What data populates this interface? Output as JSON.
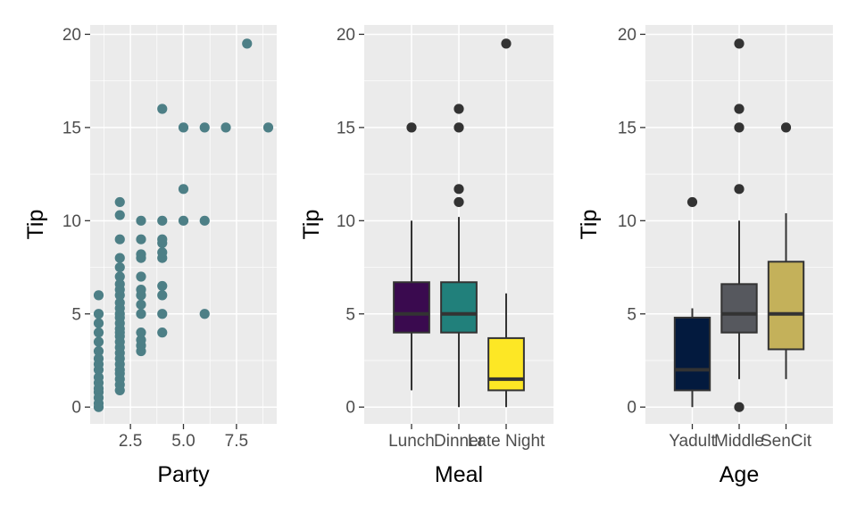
{
  "chart_data": [
    {
      "type": "scatter",
      "xlabel": "Party",
      "ylabel": "Tip",
      "xlim": [
        0.6,
        9.4
      ],
      "ylim": [
        -0.9,
        20.5
      ],
      "x_ticks": [
        2.5,
        5.0,
        7.5
      ],
      "x_tick_labels": [
        "2.5",
        "5.0",
        "7.5"
      ],
      "y_ticks": [
        0,
        5,
        10,
        15,
        20
      ],
      "y_tick_labels": [
        "0",
        "5",
        "10",
        "15",
        "20"
      ],
      "point_color": "#4d7f86",
      "points": [
        [
          1,
          0
        ],
        [
          1,
          0.2
        ],
        [
          1,
          0.5
        ],
        [
          1,
          0.8
        ],
        [
          1,
          1
        ],
        [
          1,
          1.3
        ],
        [
          1,
          1.6
        ],
        [
          1,
          2
        ],
        [
          1,
          2.3
        ],
        [
          1,
          2.6
        ],
        [
          1,
          3
        ],
        [
          1,
          3.5
        ],
        [
          1,
          4
        ],
        [
          1,
          4.5
        ],
        [
          1,
          5
        ],
        [
          1,
          6
        ],
        [
          2,
          0.9
        ],
        [
          2,
          1.2
        ],
        [
          2,
          1.5
        ],
        [
          2,
          1.8
        ],
        [
          2,
          2
        ],
        [
          2,
          2.3
        ],
        [
          2,
          2.6
        ],
        [
          2,
          2.9
        ],
        [
          2,
          3.2
        ],
        [
          2,
          3.5
        ],
        [
          2,
          3.8
        ],
        [
          2,
          4
        ],
        [
          2,
          4.2
        ],
        [
          2,
          4.5
        ],
        [
          2,
          4.8
        ],
        [
          2,
          5
        ],
        [
          2,
          5.3
        ],
        [
          2,
          5.6
        ],
        [
          2,
          6
        ],
        [
          2,
          6.3
        ],
        [
          2,
          6.6
        ],
        [
          2,
          7
        ],
        [
          2,
          7.5
        ],
        [
          2,
          8
        ],
        [
          2,
          9
        ],
        [
          2,
          10.3
        ],
        [
          2,
          11
        ],
        [
          3,
          3
        ],
        [
          3,
          3.3
        ],
        [
          3,
          3.6
        ],
        [
          3,
          4
        ],
        [
          3,
          5
        ],
        [
          3,
          5.5
        ],
        [
          3,
          6
        ],
        [
          3,
          6.3
        ],
        [
          3,
          7
        ],
        [
          3,
          8
        ],
        [
          3,
          8.2
        ],
        [
          3,
          9
        ],
        [
          3,
          10
        ],
        [
          4,
          4
        ],
        [
          4,
          5
        ],
        [
          4,
          6
        ],
        [
          4,
          6.5
        ],
        [
          4,
          8
        ],
        [
          4,
          8.3
        ],
        [
          4,
          8.8
        ],
        [
          4,
          9
        ],
        [
          4,
          10
        ],
        [
          4,
          16
        ],
        [
          5,
          10
        ],
        [
          5,
          11.7
        ],
        [
          5,
          15
        ],
        [
          6,
          5
        ],
        [
          6,
          10
        ],
        [
          6,
          15
        ],
        [
          7,
          15
        ],
        [
          8,
          19.5
        ],
        [
          9,
          15
        ]
      ]
    },
    {
      "type": "box",
      "xlabel": "Meal",
      "ylabel": "Tip",
      "ylim": [
        -0.9,
        20.5
      ],
      "y_ticks": [
        0,
        5,
        10,
        15,
        20
      ],
      "y_tick_labels": [
        "0",
        "5",
        "10",
        "15",
        "20"
      ],
      "categories": [
        "Lunch",
        "Dinner",
        "Late Night"
      ],
      "boxes": [
        {
          "category": "Lunch",
          "color": "#3a0a4f",
          "whisker_low": 0.9,
          "q1": 4,
          "median": 5,
          "q3": 6.7,
          "whisker_high": 10,
          "outliers": [
            15
          ]
        },
        {
          "category": "Dinner",
          "color": "#21807b",
          "whisker_low": 0,
          "q1": 4,
          "median": 5,
          "q3": 6.7,
          "whisker_high": 10.2,
          "outliers": [
            11,
            11.7,
            15,
            16
          ]
        },
        {
          "category": "Late Night",
          "color": "#fde725",
          "whisker_low": 0,
          "q1": 0.9,
          "median": 1.5,
          "q3": 3.7,
          "whisker_high": 6.1,
          "outliers": [
            19.5
          ]
        }
      ]
    },
    {
      "type": "box",
      "xlabel": "Age",
      "ylabel": "Tip",
      "ylim": [
        -0.9,
        20.5
      ],
      "y_ticks": [
        0,
        5,
        10,
        15,
        20
      ],
      "y_tick_labels": [
        "0",
        "5",
        "10",
        "15",
        "20"
      ],
      "categories": [
        "Yadult",
        "Middle",
        "SenCit"
      ],
      "boxes": [
        {
          "category": "Yadult",
          "color": "#031a3e",
          "whisker_low": 0,
          "q1": 0.9,
          "median": 2,
          "q3": 4.8,
          "whisker_high": 5.3,
          "outliers": [
            11
          ]
        },
        {
          "category": "Middle",
          "color": "#56585e",
          "whisker_low": 1.5,
          "q1": 4,
          "median": 5,
          "q3": 6.6,
          "whisker_high": 10,
          "outliers": [
            0,
            11.7,
            15,
            16,
            19.5
          ]
        },
        {
          "category": "SenCit",
          "color": "#c4b15a",
          "whisker_low": 1.5,
          "q1": 3.1,
          "median": 5,
          "q3": 7.8,
          "whisker_high": 10.4,
          "outliers": [
            15
          ]
        }
      ]
    }
  ]
}
